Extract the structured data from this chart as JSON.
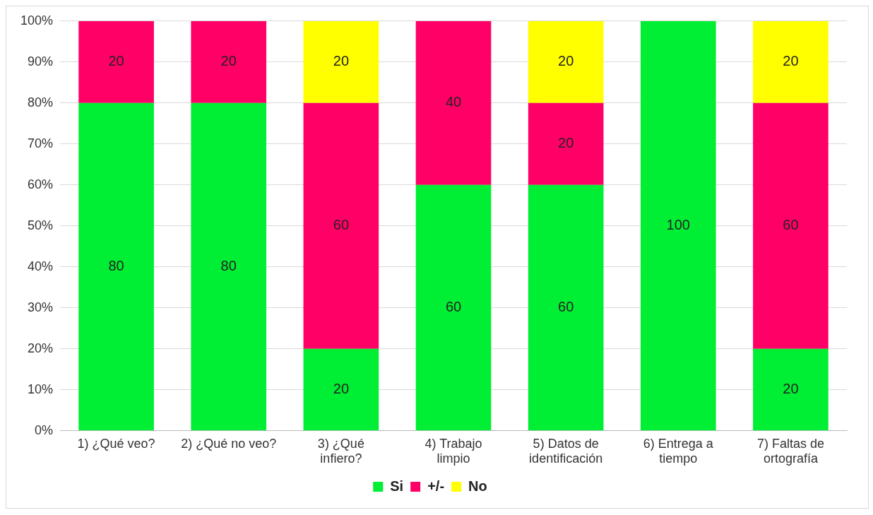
{
  "chart_data": {
    "type": "bar",
    "stacked": true,
    "categories": [
      "1) ¿Qué veo?",
      "2) ¿Qué no veo?",
      "3) ¿Qué infiero?",
      "4) Trabajo limpio",
      "5) Datos de identificación",
      "6) Entrega a tiempo",
      "7) Faltas de ortografía"
    ],
    "series": [
      {
        "name": "Si",
        "color": "#00ee33",
        "values": [
          80,
          80,
          20,
          60,
          60,
          100,
          20
        ]
      },
      {
        "name": "+/-",
        "color": "#ff0066",
        "values": [
          20,
          20,
          60,
          40,
          20,
          null,
          60
        ]
      },
      {
        "name": "No",
        "color": "#ffff00",
        "values": [
          null,
          null,
          20,
          null,
          20,
          null,
          20
        ]
      }
    ],
    "ylim": [
      0,
      100
    ],
    "yticks": [
      {
        "value": 0,
        "label": "0%"
      },
      {
        "value": 10,
        "label": "10%"
      },
      {
        "value": 20,
        "label": "20%"
      },
      {
        "value": 30,
        "label": "30%"
      },
      {
        "value": 40,
        "label": "40%"
      },
      {
        "value": 50,
        "label": "50%"
      },
      {
        "value": 60,
        "label": "60%"
      },
      {
        "value": 70,
        "label": "70%"
      },
      {
        "value": 80,
        "label": "80%"
      },
      {
        "value": 90,
        "label": "90%"
      },
      {
        "value": 100,
        "label": "100%"
      }
    ],
    "grid": "y",
    "legend": "bottom",
    "data_labels": true
  }
}
